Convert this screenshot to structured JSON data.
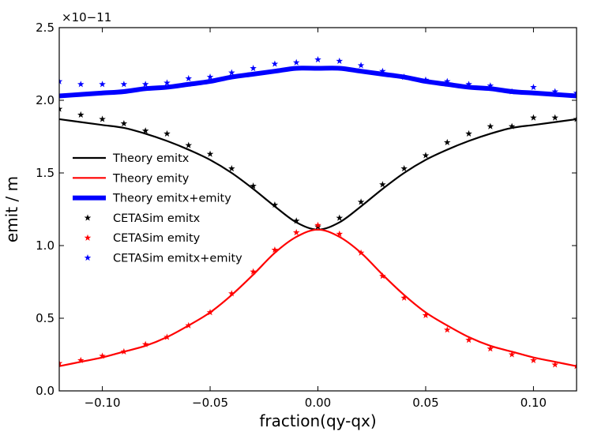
{
  "chart_data": {
    "type": "line",
    "xlabel": "fraction(qy-qx)",
    "ylabel": "emit / m",
    "offset_text": "×10−11",
    "xlim": [
      -0.12,
      0.12
    ],
    "ylim": [
      0,
      2.5
    ],
    "xticks": [
      -0.1,
      -0.05,
      0.0,
      0.05,
      0.1
    ],
    "xtick_labels": [
      "−0.10",
      "−0.05",
      "0.00",
      "0.05",
      "0.10"
    ],
    "yticks": [
      0.0,
      0.5,
      1.0,
      1.5,
      2.0,
      2.5
    ],
    "ytick_labels": [
      "0.0",
      "0.5",
      "1.0",
      "1.5",
      "2.0",
      "2.5"
    ],
    "legend_position": "center-left",
    "series": [
      {
        "name": "Theory emitx",
        "kind": "line",
        "color": "#000000",
        "width": 2.2,
        "x": [
          -0.12,
          -0.11,
          -0.1,
          -0.09,
          -0.08,
          -0.07,
          -0.06,
          -0.05,
          -0.04,
          -0.03,
          -0.02,
          -0.01,
          0.0,
          0.01,
          0.02,
          0.03,
          0.04,
          0.05,
          0.06,
          0.07,
          0.08,
          0.09,
          0.1,
          0.11,
          0.12
        ],
        "y": [
          1.87,
          1.85,
          1.83,
          1.81,
          1.77,
          1.72,
          1.66,
          1.59,
          1.5,
          1.39,
          1.27,
          1.16,
          1.11,
          1.16,
          1.27,
          1.39,
          1.5,
          1.59,
          1.66,
          1.72,
          1.77,
          1.81,
          1.83,
          1.85,
          1.87
        ]
      },
      {
        "name": "Theory emity",
        "kind": "line",
        "color": "#ff0000",
        "width": 2.2,
        "x": [
          -0.12,
          -0.11,
          -0.1,
          -0.09,
          -0.08,
          -0.07,
          -0.06,
          -0.05,
          -0.04,
          -0.03,
          -0.02,
          -0.01,
          0.0,
          0.01,
          0.02,
          0.03,
          0.04,
          0.05,
          0.06,
          0.07,
          0.08,
          0.09,
          0.1,
          0.11,
          0.12
        ],
        "y": [
          0.17,
          0.2,
          0.23,
          0.27,
          0.31,
          0.37,
          0.45,
          0.54,
          0.66,
          0.8,
          0.95,
          1.06,
          1.11,
          1.06,
          0.95,
          0.8,
          0.66,
          0.54,
          0.45,
          0.37,
          0.31,
          0.27,
          0.23,
          0.2,
          0.17
        ]
      },
      {
        "name": "Theory emitx+emity",
        "kind": "line",
        "color": "#0000ff",
        "width": 6,
        "x": [
          -0.12,
          -0.11,
          -0.1,
          -0.09,
          -0.08,
          -0.07,
          -0.06,
          -0.05,
          -0.04,
          -0.03,
          -0.02,
          -0.01,
          0.0,
          0.01,
          0.02,
          0.03,
          0.04,
          0.05,
          0.06,
          0.07,
          0.08,
          0.09,
          0.1,
          0.11,
          0.12
        ],
        "y": [
          2.03,
          2.04,
          2.05,
          2.06,
          2.08,
          2.09,
          2.11,
          2.13,
          2.16,
          2.18,
          2.2,
          2.22,
          2.22,
          2.22,
          2.2,
          2.18,
          2.16,
          2.13,
          2.11,
          2.09,
          2.08,
          2.06,
          2.05,
          2.04,
          2.03
        ]
      },
      {
        "name": "CETASim emitx",
        "kind": "marker",
        "marker": "star",
        "color": "#000000",
        "x": [
          -0.12,
          -0.11,
          -0.1,
          -0.09,
          -0.08,
          -0.07,
          -0.06,
          -0.05,
          -0.04,
          -0.03,
          -0.02,
          -0.01,
          0.0,
          0.01,
          0.02,
          0.03,
          0.04,
          0.05,
          0.06,
          0.07,
          0.08,
          0.09,
          0.1,
          0.11,
          0.12
        ],
        "y": [
          1.94,
          1.9,
          1.87,
          1.84,
          1.79,
          1.77,
          1.69,
          1.63,
          1.53,
          1.41,
          1.28,
          1.17,
          1.13,
          1.19,
          1.3,
          1.42,
          1.53,
          1.62,
          1.71,
          1.77,
          1.82,
          1.82,
          1.88,
          1.88,
          1.87
        ]
      },
      {
        "name": "CETASim emity",
        "kind": "marker",
        "marker": "star",
        "color": "#ff0000",
        "x": [
          -0.12,
          -0.11,
          -0.1,
          -0.09,
          -0.08,
          -0.07,
          -0.06,
          -0.05,
          -0.04,
          -0.03,
          -0.02,
          -0.01,
          0.0,
          0.01,
          0.02,
          0.03,
          0.04,
          0.05,
          0.06,
          0.07,
          0.08,
          0.09,
          0.1,
          0.11,
          0.12
        ],
        "y": [
          0.19,
          0.21,
          0.24,
          0.27,
          0.32,
          0.37,
          0.45,
          0.54,
          0.67,
          0.82,
          0.97,
          1.09,
          1.14,
          1.08,
          0.95,
          0.79,
          0.64,
          0.52,
          0.42,
          0.35,
          0.29,
          0.25,
          0.21,
          0.18,
          0.17
        ]
      },
      {
        "name": "CETASim emitx+emity",
        "kind": "marker",
        "marker": "star",
        "color": "#0000ff",
        "x": [
          -0.12,
          -0.11,
          -0.1,
          -0.09,
          -0.08,
          -0.07,
          -0.06,
          -0.05,
          -0.04,
          -0.03,
          -0.02,
          -0.01,
          0.0,
          0.01,
          0.02,
          0.03,
          0.04,
          0.05,
          0.06,
          0.07,
          0.08,
          0.09,
          0.1,
          0.11,
          0.12
        ],
        "y": [
          2.13,
          2.11,
          2.11,
          2.11,
          2.11,
          2.12,
          2.15,
          2.16,
          2.19,
          2.22,
          2.25,
          2.26,
          2.28,
          2.27,
          2.24,
          2.2,
          2.16,
          2.14,
          2.13,
          2.11,
          2.1,
          2.06,
          2.09,
          2.06,
          2.05
        ]
      }
    ]
  }
}
